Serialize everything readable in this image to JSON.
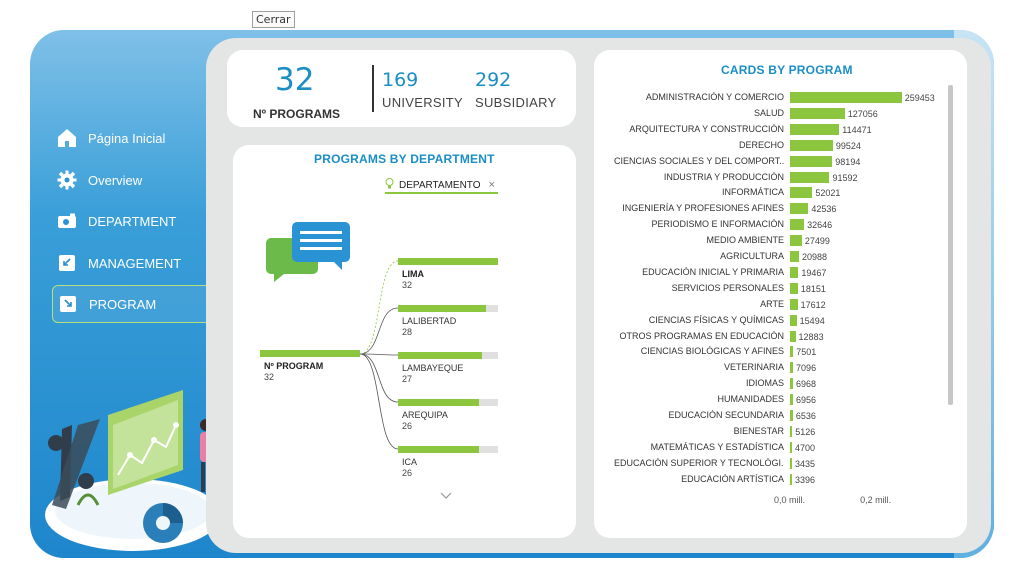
{
  "tooltip": "Cerrar",
  "nav": [
    {
      "label": "Página Inicial",
      "icon": "home-icon"
    },
    {
      "label": "Overview",
      "icon": "gear-icon"
    },
    {
      "label": "DEPARTMENT",
      "icon": "camera-icon"
    },
    {
      "label": "MANAGEMENT",
      "icon": "arrow-down-left-icon"
    },
    {
      "label": "PROGRAM",
      "icon": "arrow-down-right-icon",
      "active": true
    }
  ],
  "kpis": {
    "programs_value": "32",
    "programs_label": "Nº PROGRAMS",
    "university_value": "169",
    "university_label": "UNIVERSITY",
    "subsidiary_value": "292",
    "subsidiary_label": "SUBSIDIARY"
  },
  "tree": {
    "title": "PROGRAMS BY DEPARTMENT",
    "filter_label": "DEPARTAMENTO",
    "filter_icon": "lightbulb-icon",
    "root_label": "Nº PROGRAM",
    "root_value": "32",
    "max_value": 32,
    "nodes": [
      {
        "label": "LIMA",
        "value": 32
      },
      {
        "label": "LALIBERTAD",
        "value": 28
      },
      {
        "label": "LAMBAYEQUE",
        "value": 27
      },
      {
        "label": "AREQUIPA",
        "value": 26
      },
      {
        "label": "ICA",
        "value": 26
      }
    ]
  },
  "chart_data": {
    "type": "bar",
    "title": "CARDS BY PROGRAM",
    "orientation": "horizontal",
    "categories": [
      "ADMINISTRACIÓN Y COMERCIO",
      "SALUD",
      "ARQUITECTURA Y CONSTRUCCIÓN",
      "DERECHO",
      "CIENCIAS SOCIALES Y DEL COMPORT...",
      "INDUSTRIA Y PRODUCCIÓN",
      "INFORMÁTICA",
      "INGENIERÍA Y PROFESIONES AFINES",
      "PERIODISMO E INFORMACIÓN",
      "MEDIO AMBIENTE",
      "AGRICULTURA",
      "EDUCACIÓN INICIAL Y PRIMARIA",
      "SERVICIOS PERSONALES",
      "ARTE",
      "CIENCIAS FÍSICAS Y QUÍMICAS",
      "OTROS PROGRAMAS EN EDUCACIÓN",
      "CIENCIAS BIOLÓGICAS Y AFINES",
      "VETERINARIA",
      "IDIOMAS",
      "HUMANIDADES",
      "EDUCACIÓN SECUNDARIA",
      "BIENESTAR",
      "MATEMÁTICAS Y ESTADÍSTICA",
      "EDUCACIÓN SUPERIOR Y TECNOLÓGI...",
      "EDUCACIÓN ARTÍSTICA"
    ],
    "values": [
      259453,
      127056,
      114471,
      99524,
      98194,
      91592,
      52021,
      42536,
      32646,
      27499,
      20988,
      19467,
      18151,
      17612,
      15494,
      12883,
      7501,
      7096,
      6968,
      6956,
      6536,
      5126,
      4700,
      3435,
      3396
    ],
    "xlim": [
      0,
      260000
    ],
    "xticks": [
      "0,0 mill.",
      "0,2 mill."
    ],
    "xtick_values": [
      0,
      200000
    ],
    "colors": {
      "bar": "#8cc63f"
    }
  }
}
